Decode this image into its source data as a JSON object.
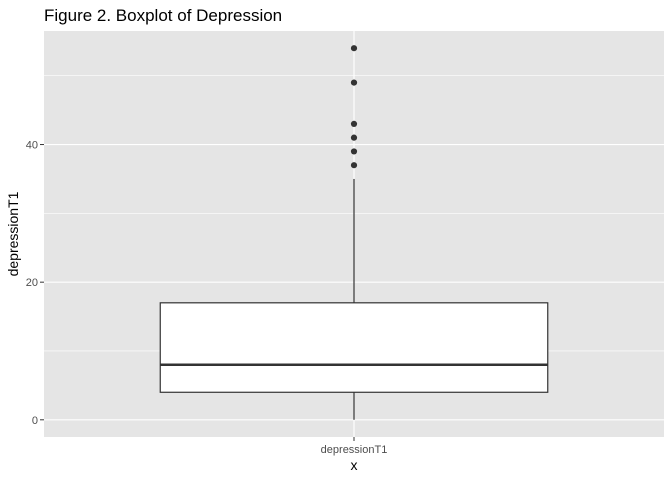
{
  "chart_data": {
    "type": "boxplot",
    "title": "Figure 2. Boxplot of Depression",
    "xlabel": "x",
    "ylabel": "depressionT1",
    "categories": [
      "depressionT1"
    ],
    "ylim": [
      -2.5,
      56.5
    ],
    "yticks": [
      0,
      20,
      40
    ],
    "grid": true,
    "legend": "none",
    "colors": {
      "panel_background": "#e5e5e5",
      "grid_line": "#ffffff",
      "box_fill": "#ffffff",
      "box_stroke": "#333333",
      "outlier": "#333333"
    },
    "boxes": [
      {
        "category": "depressionT1",
        "min": 0,
        "q1": 4,
        "median": 8,
        "q3": 17,
        "max": 35,
        "outliers": [
          37,
          39,
          41,
          43,
          49,
          54
        ]
      }
    ]
  }
}
